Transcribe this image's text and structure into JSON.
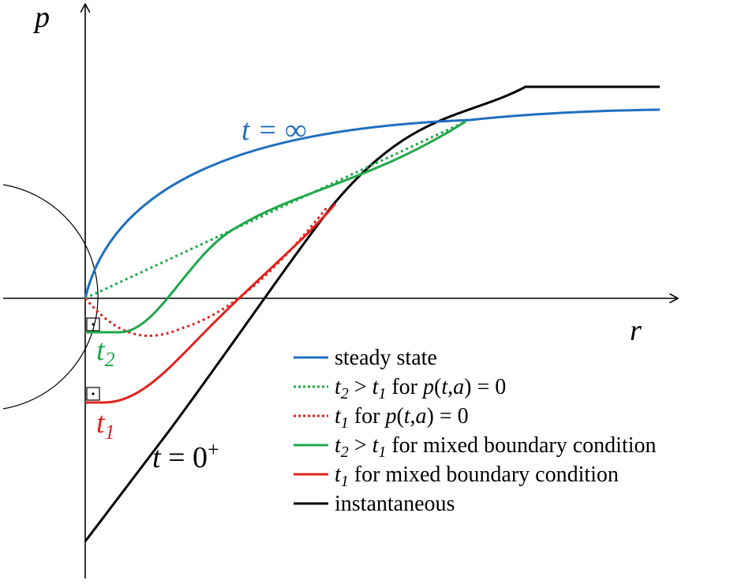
{
  "axes": {
    "y_label": "p",
    "x_label": "r"
  },
  "curve_labels": {
    "steady": "t = ∞",
    "t2": {
      "main": "t",
      "sub": "2"
    },
    "t1": {
      "main": "t",
      "sub": "1"
    },
    "t0": {
      "main": "t = 0",
      "sup": "+"
    }
  },
  "colors": {
    "steady": "#1f6fbf",
    "t2": "#1fa84a",
    "t1": "#e0221e",
    "instantaneous": "#000000"
  },
  "legend": [
    {
      "id": "steady",
      "style": "solid",
      "color": "#1f6fbf",
      "parts": [
        {
          "t": "steady state"
        }
      ]
    },
    {
      "id": "t2-dirichlet",
      "style": "dotted",
      "color": "#1fa84a",
      "parts": [
        {
          "t": "t",
          "i": true
        },
        {
          "t": "2",
          "i": true,
          "sub": true
        },
        {
          "t": " > "
        },
        {
          "t": "t",
          "i": true
        },
        {
          "t": "1",
          "i": true,
          "sub": true
        },
        {
          "t": " for "
        },
        {
          "t": "p",
          "i": true
        },
        {
          "t": "("
        },
        {
          "t": "t",
          "i": true
        },
        {
          "t": ","
        },
        {
          "t": "a",
          "i": true
        },
        {
          "t": ") = 0"
        }
      ]
    },
    {
      "id": "t1-dirichlet",
      "style": "dotted",
      "color": "#e0221e",
      "parts": [
        {
          "t": "t",
          "i": true
        },
        {
          "t": "1",
          "i": true,
          "sub": true
        },
        {
          "t": " for "
        },
        {
          "t": "p",
          "i": true
        },
        {
          "t": "("
        },
        {
          "t": "t",
          "i": true
        },
        {
          "t": ","
        },
        {
          "t": "a",
          "i": true
        },
        {
          "t": ") = 0"
        }
      ]
    },
    {
      "id": "t2-mixed",
      "style": "solid",
      "color": "#1fa84a",
      "parts": [
        {
          "t": "t",
          "i": true
        },
        {
          "t": "2",
          "i": true,
          "sub": true
        },
        {
          "t": " > "
        },
        {
          "t": "t",
          "i": true
        },
        {
          "t": "1",
          "i": true,
          "sub": true
        },
        {
          "t": "  for mixed boundary condition"
        }
      ]
    },
    {
      "id": "t1-mixed",
      "style": "solid",
      "color": "#e0221e",
      "parts": [
        {
          "t": "t",
          "i": true
        },
        {
          "t": "1",
          "i": true,
          "sub": true
        },
        {
          "t": " for mixed boundary condition"
        }
      ]
    },
    {
      "id": "instantaneous",
      "style": "solid",
      "color": "#000000",
      "parts": [
        {
          "t": "instantaneous"
        }
      ]
    }
  ]
}
